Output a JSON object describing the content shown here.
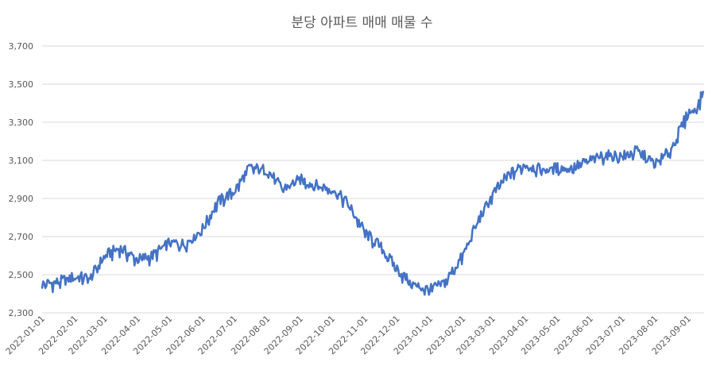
{
  "chart_data": {
    "type": "line",
    "title": "분당 아파트 매매 매물 수",
    "xlabel": "",
    "ylabel": "",
    "ylim": [
      2300,
      3700
    ],
    "yticks": [
      2300,
      2500,
      2700,
      2900,
      3100,
      3300,
      3500,
      3700
    ],
    "ytick_labels": [
      "2,300",
      "2,500",
      "2,700",
      "2,900",
      "3,100",
      "3,300",
      "3,500",
      "3,700"
    ],
    "xticks": [
      "2022-01-01",
      "2022-02-01",
      "2022-03-01",
      "2022-04-01",
      "2022-05-01",
      "2022-06-01",
      "2022-07-01",
      "2022-08-01",
      "2022-09-01",
      "2022-10-01",
      "2022-11-01",
      "2022-12-01",
      "2023-01-01",
      "2023-02-01",
      "2023-03-01",
      "2023-04-01",
      "2023-05-01",
      "2023-06-01",
      "2023-07-01",
      "2023-08-01",
      "2023-09-01"
    ],
    "grid": true,
    "legend": "none",
    "colors": {
      "series": "#4472C4",
      "grid": "#d9d9d9",
      "text": "#595959"
    },
    "x": [
      "2022-01-01",
      "2022-01-15",
      "2022-02-01",
      "2022-02-15",
      "2022-03-01",
      "2022-03-15",
      "2022-04-01",
      "2022-04-15",
      "2022-05-01",
      "2022-05-15",
      "2022-06-01",
      "2022-06-15",
      "2022-07-01",
      "2022-07-15",
      "2022-08-01",
      "2022-08-15",
      "2022-09-01",
      "2022-09-15",
      "2022-10-01",
      "2022-10-15",
      "2022-11-01",
      "2022-11-15",
      "2022-12-01",
      "2022-12-15",
      "2023-01-01",
      "2023-01-15",
      "2023-02-01",
      "2023-02-15",
      "2023-03-01",
      "2023-03-15",
      "2023-04-01",
      "2023-04-15",
      "2023-05-01",
      "2023-05-15",
      "2023-06-01",
      "2023-06-15",
      "2023-07-01",
      "2023-07-15",
      "2023-08-01",
      "2023-08-15",
      "2023-09-01",
      "2023-09-10",
      "2023-09-15"
    ],
    "series": [
      {
        "values": [
          2450,
          2460,
          2490,
          2480,
          2600,
          2640,
          2580,
          2600,
          2670,
          2660,
          2740,
          2880,
          2940,
          3060,
          3050,
          2950,
          3000,
          2970,
          2950,
          2880,
          2720,
          2650,
          2530,
          2450,
          2420,
          2460,
          2600,
          2780,
          2920,
          3020,
          3080,
          3050,
          3060,
          3060,
          3100,
          3130,
          3120,
          3150,
          3080,
          3150,
          3350,
          3380,
          3460
        ]
      }
    ]
  }
}
